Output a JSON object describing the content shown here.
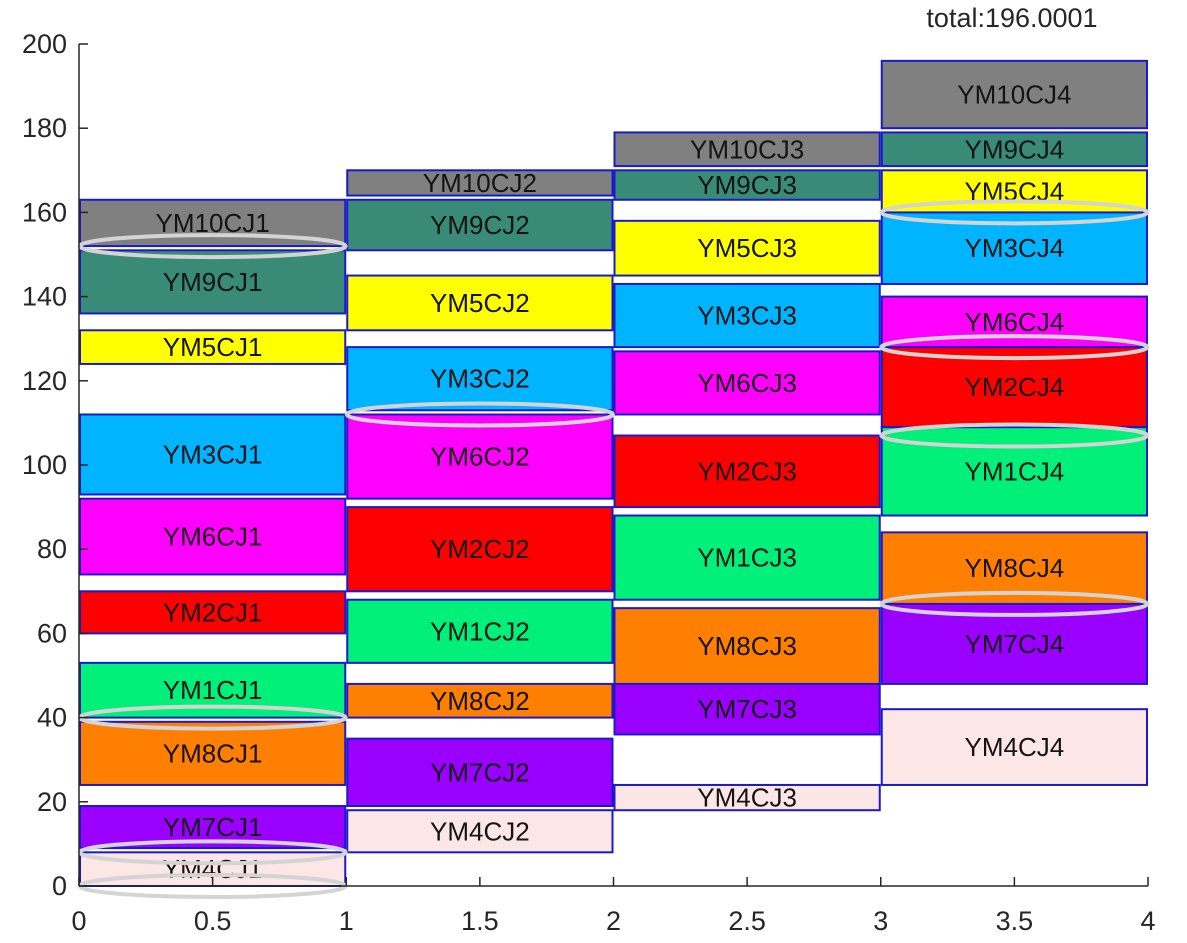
{
  "chart_data": {
    "type": "bar",
    "total_label": "total:196.0001",
    "xlim": [
      0,
      4
    ],
    "ylim": [
      0,
      200
    ],
    "x_ticks": [
      "0",
      "0.5",
      "1",
      "1.5",
      "2",
      "2.5",
      "3",
      "3.5",
      "4"
    ],
    "y_ticks": [
      "0",
      "20",
      "40",
      "60",
      "80",
      "100",
      "120",
      "140",
      "160",
      "180",
      "200"
    ],
    "grid": false,
    "edge_color": "#1a1acc",
    "colors": {
      "YM1": "#00f07a",
      "YM2": "#ff0000",
      "YM3": "#00b4ff",
      "YM4": "#fde6e6",
      "YM5": "#ffff00",
      "YM6": "#ff00ff",
      "YM7": "#9a00ff",
      "YM8": "#ff7f00",
      "YM9": "#3a8a78",
      "YM10": "#808080"
    },
    "columns": [
      {
        "x_range": [
          0,
          1
        ],
        "blocks": [
          {
            "label": "YM4CJ1",
            "color_key": "YM4",
            "y0": 0,
            "y1": 8
          },
          {
            "label": "YM7CJ1",
            "color_key": "YM7",
            "y0": 9,
            "y1": 19
          },
          {
            "label": "YM8CJ1",
            "color_key": "YM8",
            "y0": 24,
            "y1": 39
          },
          {
            "label": "YM1CJ1",
            "color_key": "YM1",
            "y0": 40,
            "y1": 53
          },
          {
            "label": "YM2CJ1",
            "color_key": "YM2",
            "y0": 60,
            "y1": 70
          },
          {
            "label": "YM6CJ1",
            "color_key": "YM6",
            "y0": 74,
            "y1": 92
          },
          {
            "label": "YM3CJ1",
            "color_key": "YM3",
            "y0": 93,
            "y1": 112
          },
          {
            "label": "YM5CJ1",
            "color_key": "YM5",
            "y0": 124,
            "y1": 132
          },
          {
            "label": "YM9CJ1",
            "color_key": "YM9",
            "y0": 136,
            "y1": 151
          },
          {
            "label": "YM10CJ1",
            "color_key": "YM10",
            "y0": 152,
            "y1": 163
          }
        ]
      },
      {
        "x_range": [
          1,
          2
        ],
        "blocks": [
          {
            "label": "YM4CJ2",
            "color_key": "YM4",
            "y0": 8,
            "y1": 18
          },
          {
            "label": "YM7CJ2",
            "color_key": "YM7",
            "y0": 19,
            "y1": 35
          },
          {
            "label": "YM8CJ2",
            "color_key": "YM8",
            "y0": 40,
            "y1": 48
          },
          {
            "label": "YM1CJ2",
            "color_key": "YM1",
            "y0": 53,
            "y1": 68
          },
          {
            "label": "YM2CJ2",
            "color_key": "YM2",
            "y0": 70,
            "y1": 90
          },
          {
            "label": "YM6CJ2",
            "color_key": "YM6",
            "y0": 92,
            "y1": 112
          },
          {
            "label": "YM3CJ2",
            "color_key": "YM3",
            "y0": 113,
            "y1": 128
          },
          {
            "label": "YM5CJ2",
            "color_key": "YM5",
            "y0": 132,
            "y1": 145
          },
          {
            "label": "YM9CJ2",
            "color_key": "YM9",
            "y0": 151,
            "y1": 163
          },
          {
            "label": "YM10CJ2",
            "color_key": "YM10",
            "y0": 164,
            "y1": 170
          }
        ]
      },
      {
        "x_range": [
          2,
          3
        ],
        "blocks": [
          {
            "label": "YM4CJ3",
            "color_key": "YM4",
            "y0": 18,
            "y1": 24
          },
          {
            "label": "YM7CJ3",
            "color_key": "YM7",
            "y0": 36,
            "y1": 48
          },
          {
            "label": "YM8CJ3",
            "color_key": "YM8",
            "y0": 48,
            "y1": 66
          },
          {
            "label": "YM1CJ3",
            "color_key": "YM1",
            "y0": 68,
            "y1": 88
          },
          {
            "label": "YM2CJ3",
            "color_key": "YM2",
            "y0": 90,
            "y1": 107
          },
          {
            "label": "YM6CJ3",
            "color_key": "YM6",
            "y0": 112,
            "y1": 127
          },
          {
            "label": "YM3CJ3",
            "color_key": "YM3",
            "y0": 128,
            "y1": 143
          },
          {
            "label": "YM5CJ3",
            "color_key": "YM5",
            "y0": 145,
            "y1": 158
          },
          {
            "label": "YM9CJ3",
            "color_key": "YM9",
            "y0": 163,
            "y1": 170
          },
          {
            "label": "YM10CJ3",
            "color_key": "YM10",
            "y0": 171,
            "y1": 179
          }
        ]
      },
      {
        "x_range": [
          3,
          4
        ],
        "blocks": [
          {
            "label": "YM4CJ4",
            "color_key": "YM4",
            "y0": 24,
            "y1": 42
          },
          {
            "label": "YM7CJ4",
            "color_key": "YM7",
            "y0": 48,
            "y1": 67
          },
          {
            "label": "YM8CJ4",
            "color_key": "YM8",
            "y0": 67,
            "y1": 84
          },
          {
            "label": "YM1CJ4",
            "color_key": "YM1",
            "y0": 88,
            "y1": 109
          },
          {
            "label": "YM2CJ4",
            "color_key": "YM2",
            "y0": 109,
            "y1": 128
          },
          {
            "label": "YM6CJ4",
            "color_key": "YM6",
            "y0": 128,
            "y1": 140
          },
          {
            "label": "YM3CJ4",
            "color_key": "YM3",
            "y0": 143,
            "y1": 160
          },
          {
            "label": "YM5CJ4",
            "color_key": "YM5",
            "y0": 160,
            "y1": 170
          },
          {
            "label": "YM9CJ4",
            "color_key": "YM9",
            "y0": 171,
            "y1": 179
          },
          {
            "label": "YM10CJ4",
            "color_key": "YM10",
            "y0": 180,
            "y1": 196
          }
        ]
      }
    ],
    "highlight_ellipses": [
      {
        "x": 0.5,
        "y": 152
      },
      {
        "x": 0.5,
        "y": 40
      },
      {
        "x": 0.5,
        "y": 8
      },
      {
        "x": 0.5,
        "y": 0
      },
      {
        "x": 1.5,
        "y": 112
      },
      {
        "x": 3.5,
        "y": 160
      },
      {
        "x": 3.5,
        "y": 128
      },
      {
        "x": 3.5,
        "y": 107
      },
      {
        "x": 3.5,
        "y": 67
      }
    ]
  }
}
